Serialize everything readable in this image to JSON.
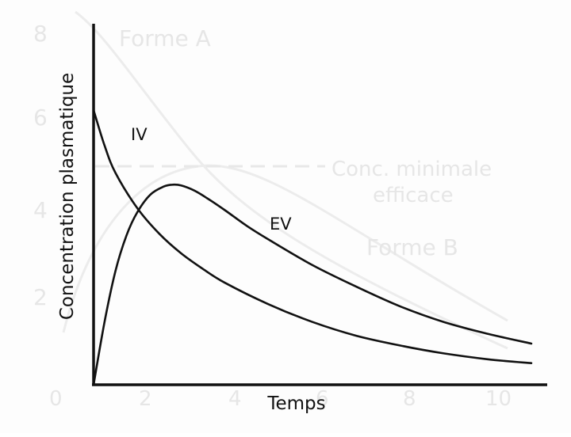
{
  "chart_data": {
    "type": "line",
    "title": "",
    "xlabel": "Temps",
    "ylabel": "Concentration plasmatique",
    "x_ticks_shown": false,
    "y_ticks_shown": false,
    "grid": false,
    "legend": "none",
    "series": [
      {
        "name": "IV",
        "x": [
          0.0,
          0.25,
          0.5,
          1.0,
          1.5,
          2.0,
          2.5,
          3.0,
          4.0,
          5.0,
          6.0,
          7.0,
          8.0,
          9.0,
          10.0
        ],
        "values": [
          7.0,
          6.1,
          5.4,
          4.5,
          3.85,
          3.35,
          2.95,
          2.6,
          2.05,
          1.6,
          1.25,
          1.0,
          0.8,
          0.65,
          0.55
        ]
      },
      {
        "name": "EV",
        "x": [
          0.0,
          0.25,
          0.5,
          0.75,
          1.0,
          1.3,
          1.6,
          1.8,
          2.0,
          2.3,
          2.6,
          3.0,
          3.5,
          4.0,
          5.0,
          6.0,
          7.0,
          8.0,
          9.0,
          10.0
        ],
        "values": [
          0.0,
          1.6,
          2.9,
          3.8,
          4.4,
          4.85,
          5.05,
          5.1,
          5.08,
          4.95,
          4.75,
          4.45,
          4.05,
          3.7,
          3.05,
          2.5,
          2.0,
          1.6,
          1.3,
          1.05
        ]
      }
    ],
    "xlim": [
      0,
      10
    ],
    "ylim": [
      0,
      9
    ],
    "colors": {
      "line": "#111111",
      "axis": "#111111",
      "background": "#fdfdfd",
      "ghost": "#e6e6e6"
    }
  },
  "background_ghost": {
    "y_ticks": [
      "2",
      "4",
      "6",
      "8"
    ],
    "x_ticks": [
      "0",
      "2",
      "4",
      "6",
      "8",
      "10"
    ],
    "labels": [
      "Forme A",
      "Conc. minimale",
      "efficace",
      "Forme B"
    ]
  }
}
